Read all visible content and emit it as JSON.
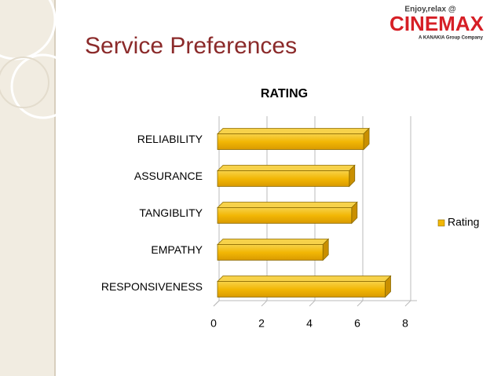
{
  "logo": {
    "tagline": "Enjoy,relax @",
    "brand": "CINEMAX",
    "subtitle": "A KANAKIA Group Company"
  },
  "slide_title": "Service Preferences",
  "chart_data": {
    "type": "bar",
    "orientation": "horizontal",
    "title": "RATING",
    "categories": [
      "RELIABILITY",
      "ASSURANCE",
      "TANGIBLITY",
      "EMPATHY",
      "RESPONSIVENESS"
    ],
    "series": [
      {
        "name": "Rating",
        "color": "#f2b705",
        "values": [
          6.1,
          5.5,
          5.6,
          4.4,
          7.0
        ]
      }
    ],
    "xlim": [
      0,
      8
    ],
    "xticks": [
      0,
      2,
      4,
      6,
      8
    ],
    "grid": true,
    "legend": "right"
  }
}
